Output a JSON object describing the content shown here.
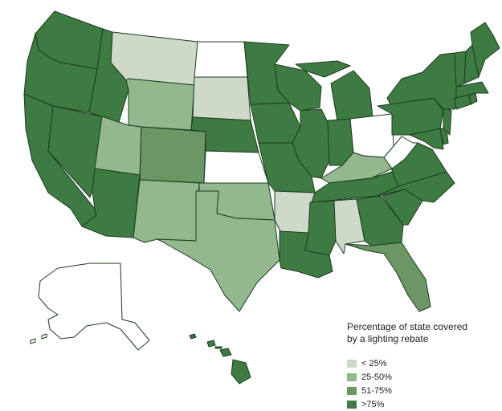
{
  "legend": {
    "title_line1": "Percentage of state covered",
    "title_line2": "by a lighting rebate",
    "items": [
      {
        "label": "< 25%",
        "color": "#cfd9c8"
      },
      {
        "label": "25-50%",
        "color": "#93b88e"
      },
      {
        "label": "51-75%",
        "color": "#6a9763"
      },
      {
        "label": ">75%",
        "color": "#3e7b42"
      }
    ]
  },
  "no_data_color": "#ffffff",
  "states": [
    {
      "name": "Washington",
      "category": ">75%"
    },
    {
      "name": "Oregon",
      "category": ">75%"
    },
    {
      "name": "California",
      "category": ">75%"
    },
    {
      "name": "Nevada",
      "category": ">75%"
    },
    {
      "name": "Idaho",
      "category": ">75%"
    },
    {
      "name": "Montana",
      "category": "< 25%"
    },
    {
      "name": "Wyoming",
      "category": "25-50%"
    },
    {
      "name": "Utah",
      "category": "25-50%"
    },
    {
      "name": "Arizona",
      "category": ">75%"
    },
    {
      "name": "Colorado",
      "category": "51-75%"
    },
    {
      "name": "New Mexico",
      "category": "25-50%"
    },
    {
      "name": "North Dakota",
      "category": "none"
    },
    {
      "name": "South Dakota",
      "category": "< 25%"
    },
    {
      "name": "Nebraska",
      "category": ">75%"
    },
    {
      "name": "Kansas",
      "category": "none"
    },
    {
      "name": "Oklahoma",
      "category": "25-50%"
    },
    {
      "name": "Texas",
      "category": "25-50%"
    },
    {
      "name": "Minnesota",
      "category": ">75%"
    },
    {
      "name": "Iowa",
      "category": ">75%"
    },
    {
      "name": "Missouri",
      "category": ">75%"
    },
    {
      "name": "Arkansas",
      "category": "< 25%"
    },
    {
      "name": "Louisiana",
      "category": ">75%"
    },
    {
      "name": "Wisconsin",
      "category": ">75%"
    },
    {
      "name": "Illinois",
      "category": ">75%"
    },
    {
      "name": "Michigan",
      "category": ">75%"
    },
    {
      "name": "Indiana",
      "category": ">75%"
    },
    {
      "name": "Ohio",
      "category": "none"
    },
    {
      "name": "Kentucky",
      "category": "25-50%"
    },
    {
      "name": "Tennessee",
      "category": ">75%"
    },
    {
      "name": "Mississippi",
      "category": ">75%"
    },
    {
      "name": "Alabama",
      "category": "< 25%"
    },
    {
      "name": "Georgia",
      "category": ">75%"
    },
    {
      "name": "Florida",
      "category": "51-75%"
    },
    {
      "name": "South Carolina",
      "category": ">75%"
    },
    {
      "name": "North Carolina",
      "category": ">75%"
    },
    {
      "name": "Virginia",
      "category": ">75%"
    },
    {
      "name": "West Virginia",
      "category": "none"
    },
    {
      "name": "Maryland",
      "category": ">75%"
    },
    {
      "name": "Delaware",
      "category": ">75%"
    },
    {
      "name": "Pennsylvania",
      "category": ">75%"
    },
    {
      "name": "New Jersey",
      "category": ">75%"
    },
    {
      "name": "New York",
      "category": ">75%"
    },
    {
      "name": "Connecticut",
      "category": ">75%"
    },
    {
      "name": "Rhode Island",
      "category": ">75%"
    },
    {
      "name": "Massachusetts",
      "category": ">75%"
    },
    {
      "name": "Vermont",
      "category": ">75%"
    },
    {
      "name": "New Hampshire",
      "category": ">75%"
    },
    {
      "name": "Maine",
      "category": ">75%"
    },
    {
      "name": "Alaska",
      "category": "none"
    },
    {
      "name": "Hawaii",
      "category": ">75%"
    }
  ]
}
